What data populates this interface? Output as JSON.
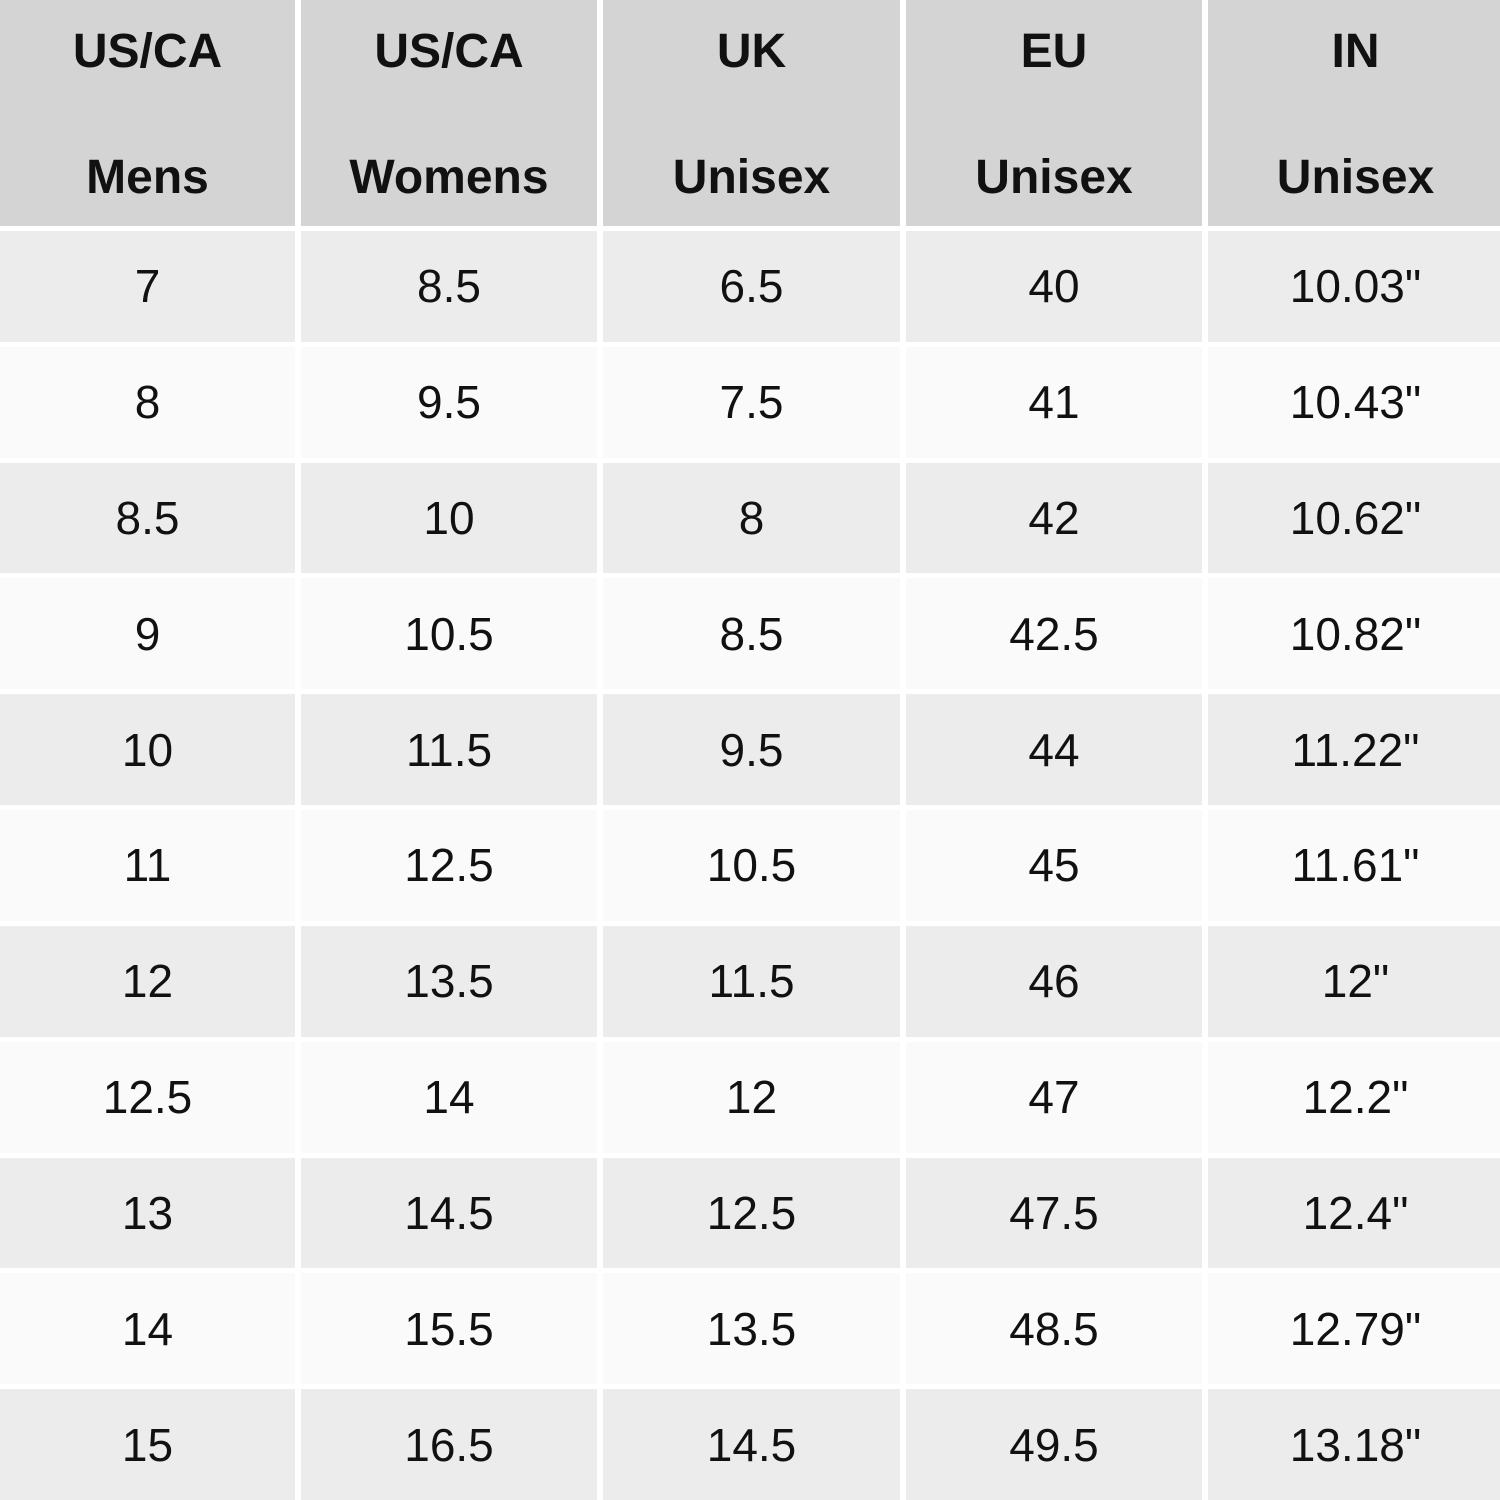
{
  "table": {
    "header": [
      {
        "line1": "US/CA",
        "line2": "Mens"
      },
      {
        "line1": "US/CA",
        "line2": "Womens"
      },
      {
        "line1": "UK",
        "line2": "Unisex"
      },
      {
        "line1": "EU",
        "line2": "Unisex"
      },
      {
        "line1": "IN",
        "line2": "Unisex"
      }
    ],
    "rows": [
      [
        "7",
        "8.5",
        "6.5",
        "40",
        "10.03\""
      ],
      [
        "8",
        "9.5",
        "7.5",
        "41",
        "10.43\""
      ],
      [
        "8.5",
        "10",
        "8",
        "42",
        "10.62\""
      ],
      [
        "9",
        "10.5",
        "8.5",
        "42.5",
        "10.82\""
      ],
      [
        "10",
        "11.5",
        "9.5",
        "44",
        "11.22\""
      ],
      [
        "11",
        "12.5",
        "10.5",
        "45",
        "11.61\""
      ],
      [
        "12",
        "13.5",
        "11.5",
        "46",
        "12\""
      ],
      [
        "12.5",
        "14",
        "12",
        "47",
        "12.2\""
      ],
      [
        "13",
        "14.5",
        "12.5",
        "47.5",
        "12.4\""
      ],
      [
        "14",
        "15.5",
        "13.5",
        "48.5",
        "12.79\""
      ],
      [
        "15",
        "16.5",
        "14.5",
        "49.5",
        "13.18\""
      ]
    ]
  }
}
